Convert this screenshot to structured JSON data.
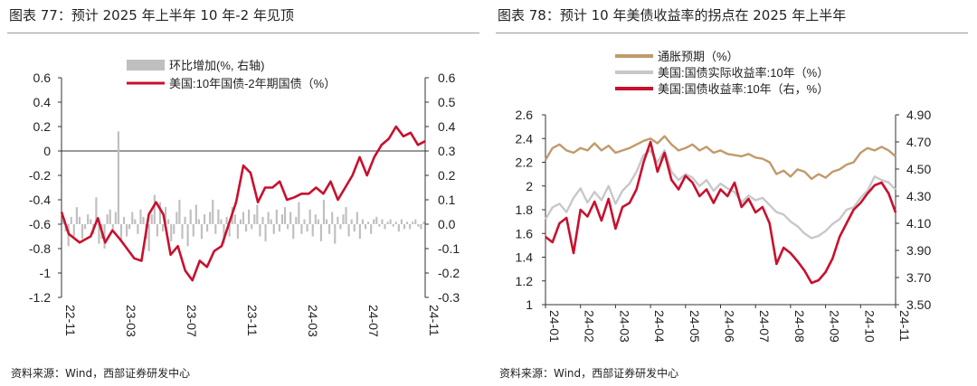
{
  "left": {
    "title": "图表 77：预计 2025 年上半年 10 年-2 年见顶",
    "source": "资料来源：Wind，西部证券研发中心",
    "chart_data": {
      "type": "bar+line",
      "legend": [
        "环比增加(%, 右轴)",
        "美国:10年国债-2年期国债（%）"
      ],
      "left_axis": {
        "ylim": [
          -1.2,
          0.6
        ],
        "ticks": [
          "0.6",
          "0.4",
          "0.2",
          "0",
          "-0.2",
          "-0.4",
          "-0.6",
          "-0.8",
          "-1",
          "-1.2"
        ]
      },
      "right_axis": {
        "ylim": [
          -0.3,
          0.6
        ],
        "ticks": [
          "0.6",
          "0.5",
          "0.4",
          "0.3",
          "0.2",
          "0.1",
          "0.0",
          "-0.1",
          "-0.2",
          "-0.3"
        ]
      },
      "x_ticks": [
        "22-11",
        "23-03",
        "23-07",
        "23-11",
        "24-03",
        "24-07",
        "24-11"
      ],
      "spread_series": {
        "name": "美国:10年国债-2年期国债（%）",
        "t": [
          0,
          0.02,
          0.05,
          0.08,
          0.1,
          0.12,
          0.14,
          0.16,
          0.18,
          0.2,
          0.22,
          0.24,
          0.26,
          0.28,
          0.3,
          0.32,
          0.34,
          0.36,
          0.38,
          0.4,
          0.42,
          0.44,
          0.46,
          0.48,
          0.5,
          0.52,
          0.54,
          0.56,
          0.58,
          0.6,
          0.62,
          0.64,
          0.66,
          0.68,
          0.7,
          0.72,
          0.74,
          0.76,
          0.78,
          0.8,
          0.82,
          0.84,
          0.86,
          0.88,
          0.9,
          0.92,
          0.94,
          0.96,
          0.98,
          1.0
        ],
        "v": [
          -0.5,
          -0.68,
          -0.75,
          -0.7,
          -0.55,
          -0.75,
          -0.65,
          -0.72,
          -0.8,
          -0.88,
          -0.9,
          -0.52,
          -0.42,
          -0.52,
          -0.85,
          -0.78,
          -0.98,
          -1.06,
          -0.9,
          -0.95,
          -0.82,
          -0.78,
          -0.6,
          -0.42,
          -0.12,
          -0.18,
          -0.42,
          -0.3,
          -0.3,
          -0.25,
          -0.4,
          -0.38,
          -0.35,
          -0.35,
          -0.3,
          -0.35,
          -0.25,
          -0.4,
          -0.3,
          -0.2,
          -0.05,
          -0.2,
          -0.05,
          0.05,
          0.1,
          0.2,
          0.12,
          0.15,
          0.05,
          0.08
        ]
      },
      "change_series": {
        "name": "环比增加(%, 右轴)",
        "v": [
          0.02,
          -0.03,
          -0.09,
          0.03,
          -0.05,
          0.07,
          0.03,
          -0.06,
          -0.02,
          0.04,
          0.02,
          -0.04,
          0.11,
          -0.08,
          -0.06,
          -0.1,
          0.04,
          0.06,
          -0.02,
          0.05,
          0.38,
          -0.07,
          0.03,
          -0.05,
          -0.02,
          0.05,
          0.02,
          -0.04,
          0.06,
          0.03,
          -0.06,
          -0.11,
          0.04,
          0.12,
          -0.05,
          0.09,
          -0.03,
          0.07,
          0.02,
          -0.07,
          -0.04,
          0.05,
          0.1,
          -0.06,
          0.03,
          -0.09,
          0.06,
          -0.05,
          0.08,
          0.02,
          -0.06,
          0.04,
          -0.03,
          0.05,
          0.1,
          -0.04,
          0.06,
          0.02,
          -0.08,
          0.03,
          -0.05,
          0.07,
          0.04,
          -0.06,
          0.02,
          0.05,
          -0.03,
          0.06,
          -0.02,
          0.04,
          0.08,
          -0.05,
          0.03,
          -0.07,
          0.05,
          0.02,
          -0.04,
          0.06,
          -0.03,
          0.04,
          0.07,
          -0.02,
          0.05,
          -0.06,
          0.03,
          0.09,
          -0.04,
          0.02,
          -0.03,
          0.06,
          -0.05,
          0.04,
          0.02,
          -0.07,
          0.1,
          0.02,
          -0.04,
          0.05,
          -0.08,
          0.03,
          -0.02,
          0.04,
          0.07,
          -0.05,
          0.02,
          -0.03,
          0.05,
          -0.06,
          0.02,
          -0.02,
          0.01,
          -0.04,
          0.02,
          0.03,
          -0.01,
          0.02,
          -0.02,
          0.01,
          0.02,
          -0.01,
          0.01,
          -0.03,
          0.02,
          -0.02,
          0.01,
          -0.02,
          0.01,
          0.02,
          -0.01,
          -0.02,
          0.01
        ]
      }
    }
  },
  "right": {
    "title": "图表 78：预计 10 年美债收益率的拐点在 2025 年上半年",
    "source": "资料来源：Wind，西部证券研发中心",
    "chart_data": {
      "type": "line",
      "legend": [
        "通胀预期（%）",
        "美国:国债实际收益率:10年（%）",
        "美国:国债收益率:10年（右，%）"
      ],
      "left_axis": {
        "ylim": [
          1.0,
          2.6
        ],
        "ticks": [
          "2.6",
          "2.4",
          "2.2",
          "2",
          "1.8",
          "1.6",
          "1.4",
          "1.2",
          "1"
        ]
      },
      "right_axis": {
        "ylim": [
          3.5,
          4.9
        ],
        "ticks": [
          "4.90",
          "4.70",
          "4.50",
          "4.30",
          "4.10",
          "3.90",
          "3.70",
          "3.50"
        ]
      },
      "x_ticks": [
        "24-01",
        "24-02",
        "24-03",
        "24-04",
        "24-05",
        "24-06",
        "24-07",
        "24-08",
        "24-09",
        "24-10",
        "24-11"
      ],
      "t": [
        0,
        0.02,
        0.04,
        0.06,
        0.08,
        0.1,
        0.12,
        0.14,
        0.16,
        0.18,
        0.2,
        0.22,
        0.24,
        0.26,
        0.28,
        0.3,
        0.32,
        0.34,
        0.36,
        0.38,
        0.4,
        0.42,
        0.44,
        0.46,
        0.48,
        0.5,
        0.52,
        0.54,
        0.56,
        0.58,
        0.6,
        0.62,
        0.64,
        0.66,
        0.68,
        0.7,
        0.72,
        0.74,
        0.76,
        0.78,
        0.8,
        0.82,
        0.84,
        0.86,
        0.88,
        0.9,
        0.92,
        0.94,
        0.96,
        0.98,
        1.0
      ],
      "series": [
        {
          "name": "通胀预期（%）",
          "values": [
            2.22,
            2.32,
            2.35,
            2.3,
            2.28,
            2.32,
            2.3,
            2.36,
            2.3,
            2.34,
            2.28,
            2.3,
            2.32,
            2.35,
            2.38,
            2.4,
            2.36,
            2.42,
            2.35,
            2.3,
            2.32,
            2.35,
            2.3,
            2.33,
            2.28,
            2.3,
            2.27,
            2.26,
            2.25,
            2.27,
            2.24,
            2.23,
            2.2,
            2.1,
            2.13,
            2.08,
            2.14,
            2.12,
            2.06,
            2.1,
            2.07,
            2.12,
            2.14,
            2.18,
            2.2,
            2.28,
            2.32,
            2.3,
            2.33,
            2.3,
            2.25
          ]
        },
        {
          "name": "美国:国债实际收益率:10年（%）",
          "values": [
            1.72,
            1.82,
            1.85,
            1.78,
            1.9,
            1.98,
            1.86,
            1.95,
            1.88,
            2.0,
            1.85,
            1.96,
            2.02,
            2.12,
            2.26,
            2.3,
            2.2,
            2.3,
            2.12,
            2.05,
            2.1,
            2.07,
            2.0,
            2.05,
            1.96,
            2.02,
            1.98,
            1.95,
            1.86,
            1.92,
            1.88,
            1.9,
            1.84,
            1.78,
            1.76,
            1.7,
            1.66,
            1.6,
            1.56,
            1.58,
            1.62,
            1.68,
            1.72,
            1.8,
            1.82,
            1.9,
            1.96,
            2.08,
            2.05,
            2.03,
            1.97
          ]
        },
        {
          "name": "美国:国债收益率:10年（右，%）",
          "values": [
            4.0,
            3.96,
            4.1,
            4.14,
            3.88,
            4.2,
            4.15,
            4.26,
            4.12,
            4.28,
            4.06,
            4.22,
            4.25,
            4.35,
            4.55,
            4.7,
            4.48,
            4.62,
            4.42,
            4.35,
            4.45,
            4.4,
            4.3,
            4.35,
            4.25,
            4.35,
            4.3,
            4.4,
            4.22,
            4.28,
            4.18,
            4.22,
            4.1,
            3.8,
            3.92,
            3.88,
            3.82,
            3.75,
            3.66,
            3.68,
            3.74,
            3.84,
            4.0,
            4.1,
            4.2,
            4.25,
            4.32,
            4.38,
            4.4,
            4.32,
            4.18
          ]
        }
      ]
    }
  }
}
